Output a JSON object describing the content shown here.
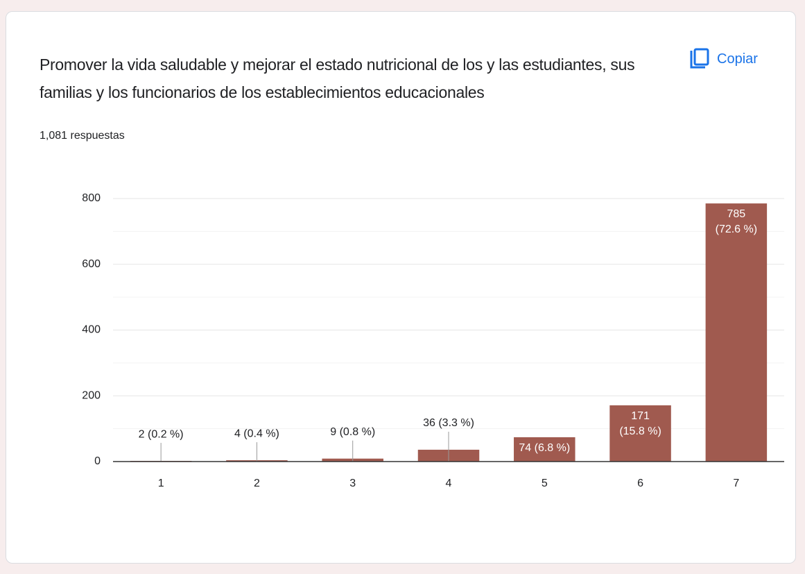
{
  "title": "Promover la vida saludable y mejorar el estado nutricional de los y las estudiantes, sus familias y los funcionarios de los establecimientos educacionales",
  "subtitle": "1,081 respuestas",
  "copy_button": "Copiar",
  "chart_data": {
    "type": "bar",
    "categories": [
      "1",
      "2",
      "3",
      "4",
      "5",
      "6",
      "7"
    ],
    "values": [
      2,
      4,
      9,
      36,
      74,
      171,
      785
    ],
    "value_labels": [
      "2 (0.2 %)",
      "4 (0.4 %)",
      "9 (0.8 %)",
      "36 (3.3 %)",
      "74 (6.8 %)",
      "171 (15.8 %)",
      "785 (72.6 %)"
    ],
    "color": "#a05a4f",
    "ylim": [
      0,
      800
    ],
    "yticks": [
      0,
      200,
      400,
      600,
      800
    ],
    "grid": true
  }
}
